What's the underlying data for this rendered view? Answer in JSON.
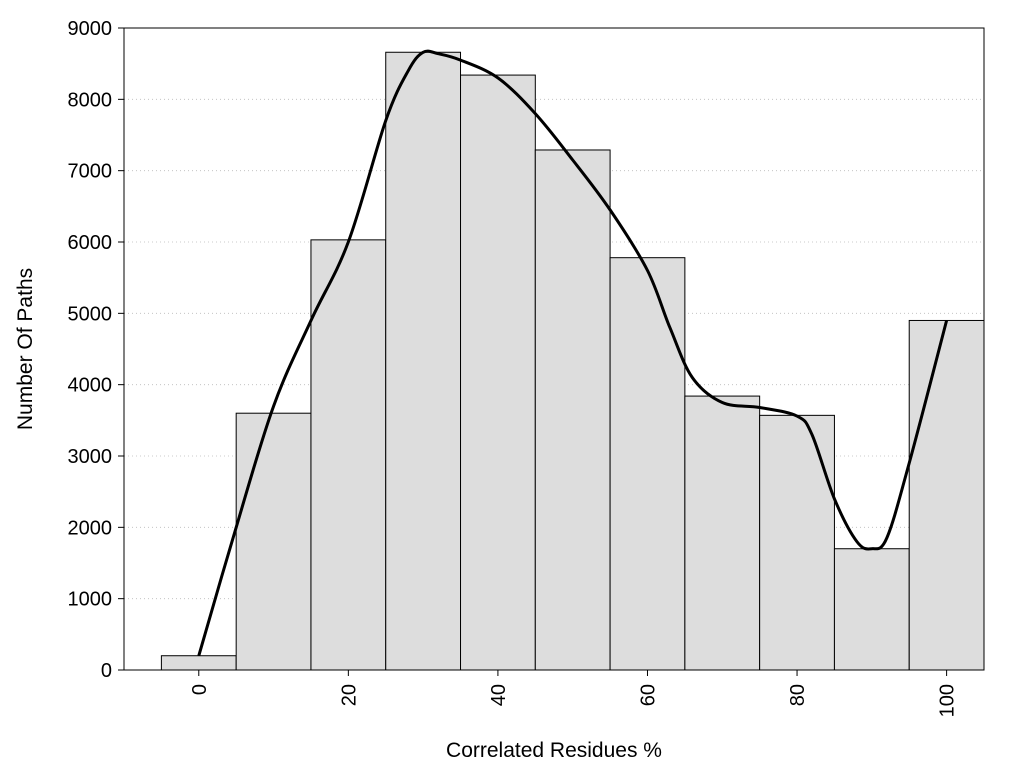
{
  "chart_data": {
    "type": "bar",
    "title": "",
    "xlabel": "Correlated Residues %",
    "ylabel": "Number Of Paths",
    "xlim": [
      -10,
      100
    ],
    "ylim": [
      0,
      9000
    ],
    "grid": "horizontal dotted",
    "bin_width": 10,
    "x": [
      0,
      10,
      20,
      30,
      40,
      50,
      60,
      70,
      80,
      90,
      100
    ],
    "values": [
      200,
      3600,
      6030,
      8660,
      8340,
      7290,
      5780,
      3840,
      3570,
      1700,
      4900
    ],
    "x_ticks": [
      "0",
      "20",
      "40",
      "60",
      "80",
      "100"
    ],
    "y_ticks": [
      "0",
      "1000",
      "2000",
      "3000",
      "4000",
      "5000",
      "6000",
      "7000",
      "8000",
      "9000"
    ],
    "curve": {
      "x": [
        0,
        5,
        10,
        15,
        20,
        25,
        28,
        30,
        32,
        35,
        40,
        45,
        50,
        55,
        60,
        63,
        66,
        70,
        75,
        80,
        82,
        85,
        88,
        90,
        92,
        95,
        100
      ],
      "y": [
        200,
        2000,
        3700,
        4900,
        6000,
        7700,
        8400,
        8660,
        8640,
        8550,
        8300,
        7800,
        7150,
        6450,
        5600,
        4800,
        4100,
        3750,
        3680,
        3560,
        3300,
        2400,
        1800,
        1700,
        1850,
        2900,
        4900
      ]
    }
  }
}
